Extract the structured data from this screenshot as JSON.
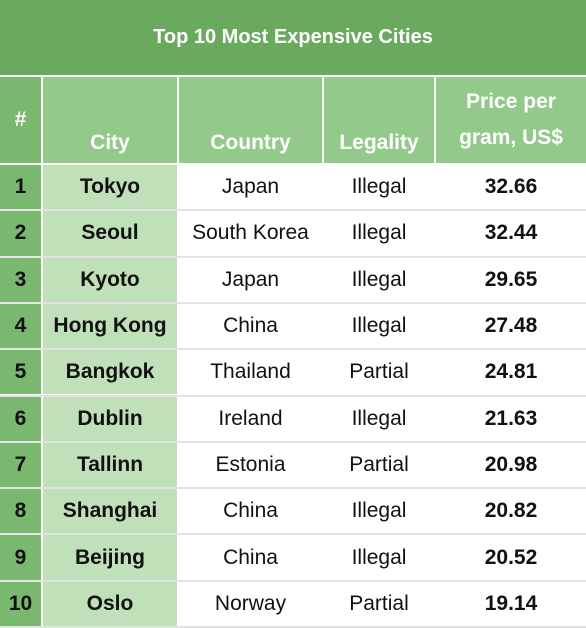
{
  "chart_data": {
    "type": "table",
    "title": "Top 10 Most Expensive Cities",
    "columns": [
      "#",
      "City",
      "Country",
      "Legality",
      "Price per gram, US$"
    ],
    "price_header_lines": [
      "Price per",
      "gram, US$"
    ],
    "rows": [
      {
        "rank": "1",
        "city": "Tokyo",
        "country": "Japan",
        "legality": "Illegal",
        "price": "32.66"
      },
      {
        "rank": "2",
        "city": "Seoul",
        "country": "South Korea",
        "legality": "Illegal",
        "price": "32.44"
      },
      {
        "rank": "3",
        "city": "Kyoto",
        "country": "Japan",
        "legality": "Illegal",
        "price": "29.65"
      },
      {
        "rank": "4",
        "city": "Hong Kong",
        "country": "China",
        "legality": "Illegal",
        "price": "27.48"
      },
      {
        "rank": "5",
        "city": "Bangkok",
        "country": "Thailand",
        "legality": "Partial",
        "price": "24.81"
      },
      {
        "rank": "6",
        "city": "Dublin",
        "country": "Ireland",
        "legality": "Illegal",
        "price": "21.63"
      },
      {
        "rank": "7",
        "city": "Tallinn",
        "country": "Estonia",
        "legality": "Partial",
        "price": "20.98"
      },
      {
        "rank": "8",
        "city": "Shanghai",
        "country": "China",
        "legality": "Illegal",
        "price": "20.82"
      },
      {
        "rank": "9",
        "city": "Beijing",
        "country": "China",
        "legality": "Illegal",
        "price": "20.52"
      },
      {
        "rank": "10",
        "city": "Oslo",
        "country": "Norway",
        "legality": "Partial",
        "price": "19.14"
      }
    ]
  },
  "colors": {
    "title_bg": "#6aaa5e",
    "header_bg": "#94c98c",
    "rank_bg": "#7ab86f",
    "city_bg": "#bfe0b8"
  }
}
